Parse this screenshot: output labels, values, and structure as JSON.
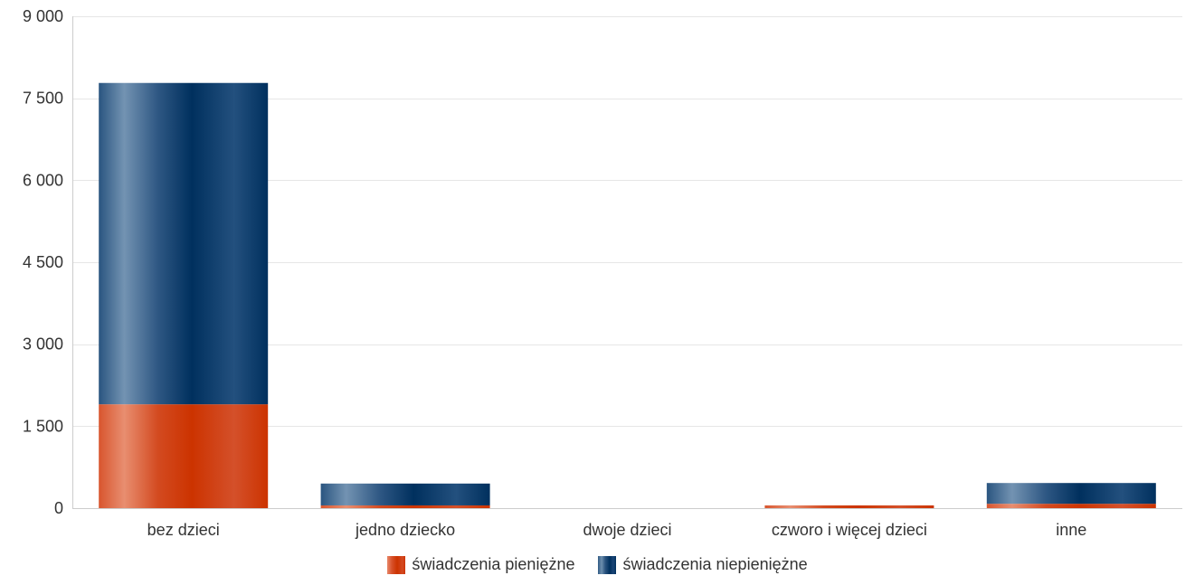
{
  "chart_data": {
    "type": "bar",
    "stacked": true,
    "categories": [
      "bez dzieci",
      "jedno dziecko",
      "dwoje dzieci",
      "czworo i więcej dzieci",
      "inne"
    ],
    "series": [
      {
        "name": "świadczenia pieniężne",
        "color": "#cc3300",
        "values": [
          1900,
          50,
          0,
          50,
          80
        ]
      },
      {
        "name": "świadczenia niepieniężne",
        "color": "#00305e",
        "values": [
          5880,
          400,
          0,
          0,
          380
        ]
      }
    ],
    "ylim": [
      0,
      9000
    ],
    "yticks": [
      0,
      1500,
      3000,
      4500,
      6000,
      7500,
      9000
    ],
    "ytick_labels": [
      "0",
      "1 500",
      "3 000",
      "4 500",
      "6 000",
      "7 500",
      "9 000"
    ],
    "grid": true,
    "legend_position": "bottom"
  }
}
